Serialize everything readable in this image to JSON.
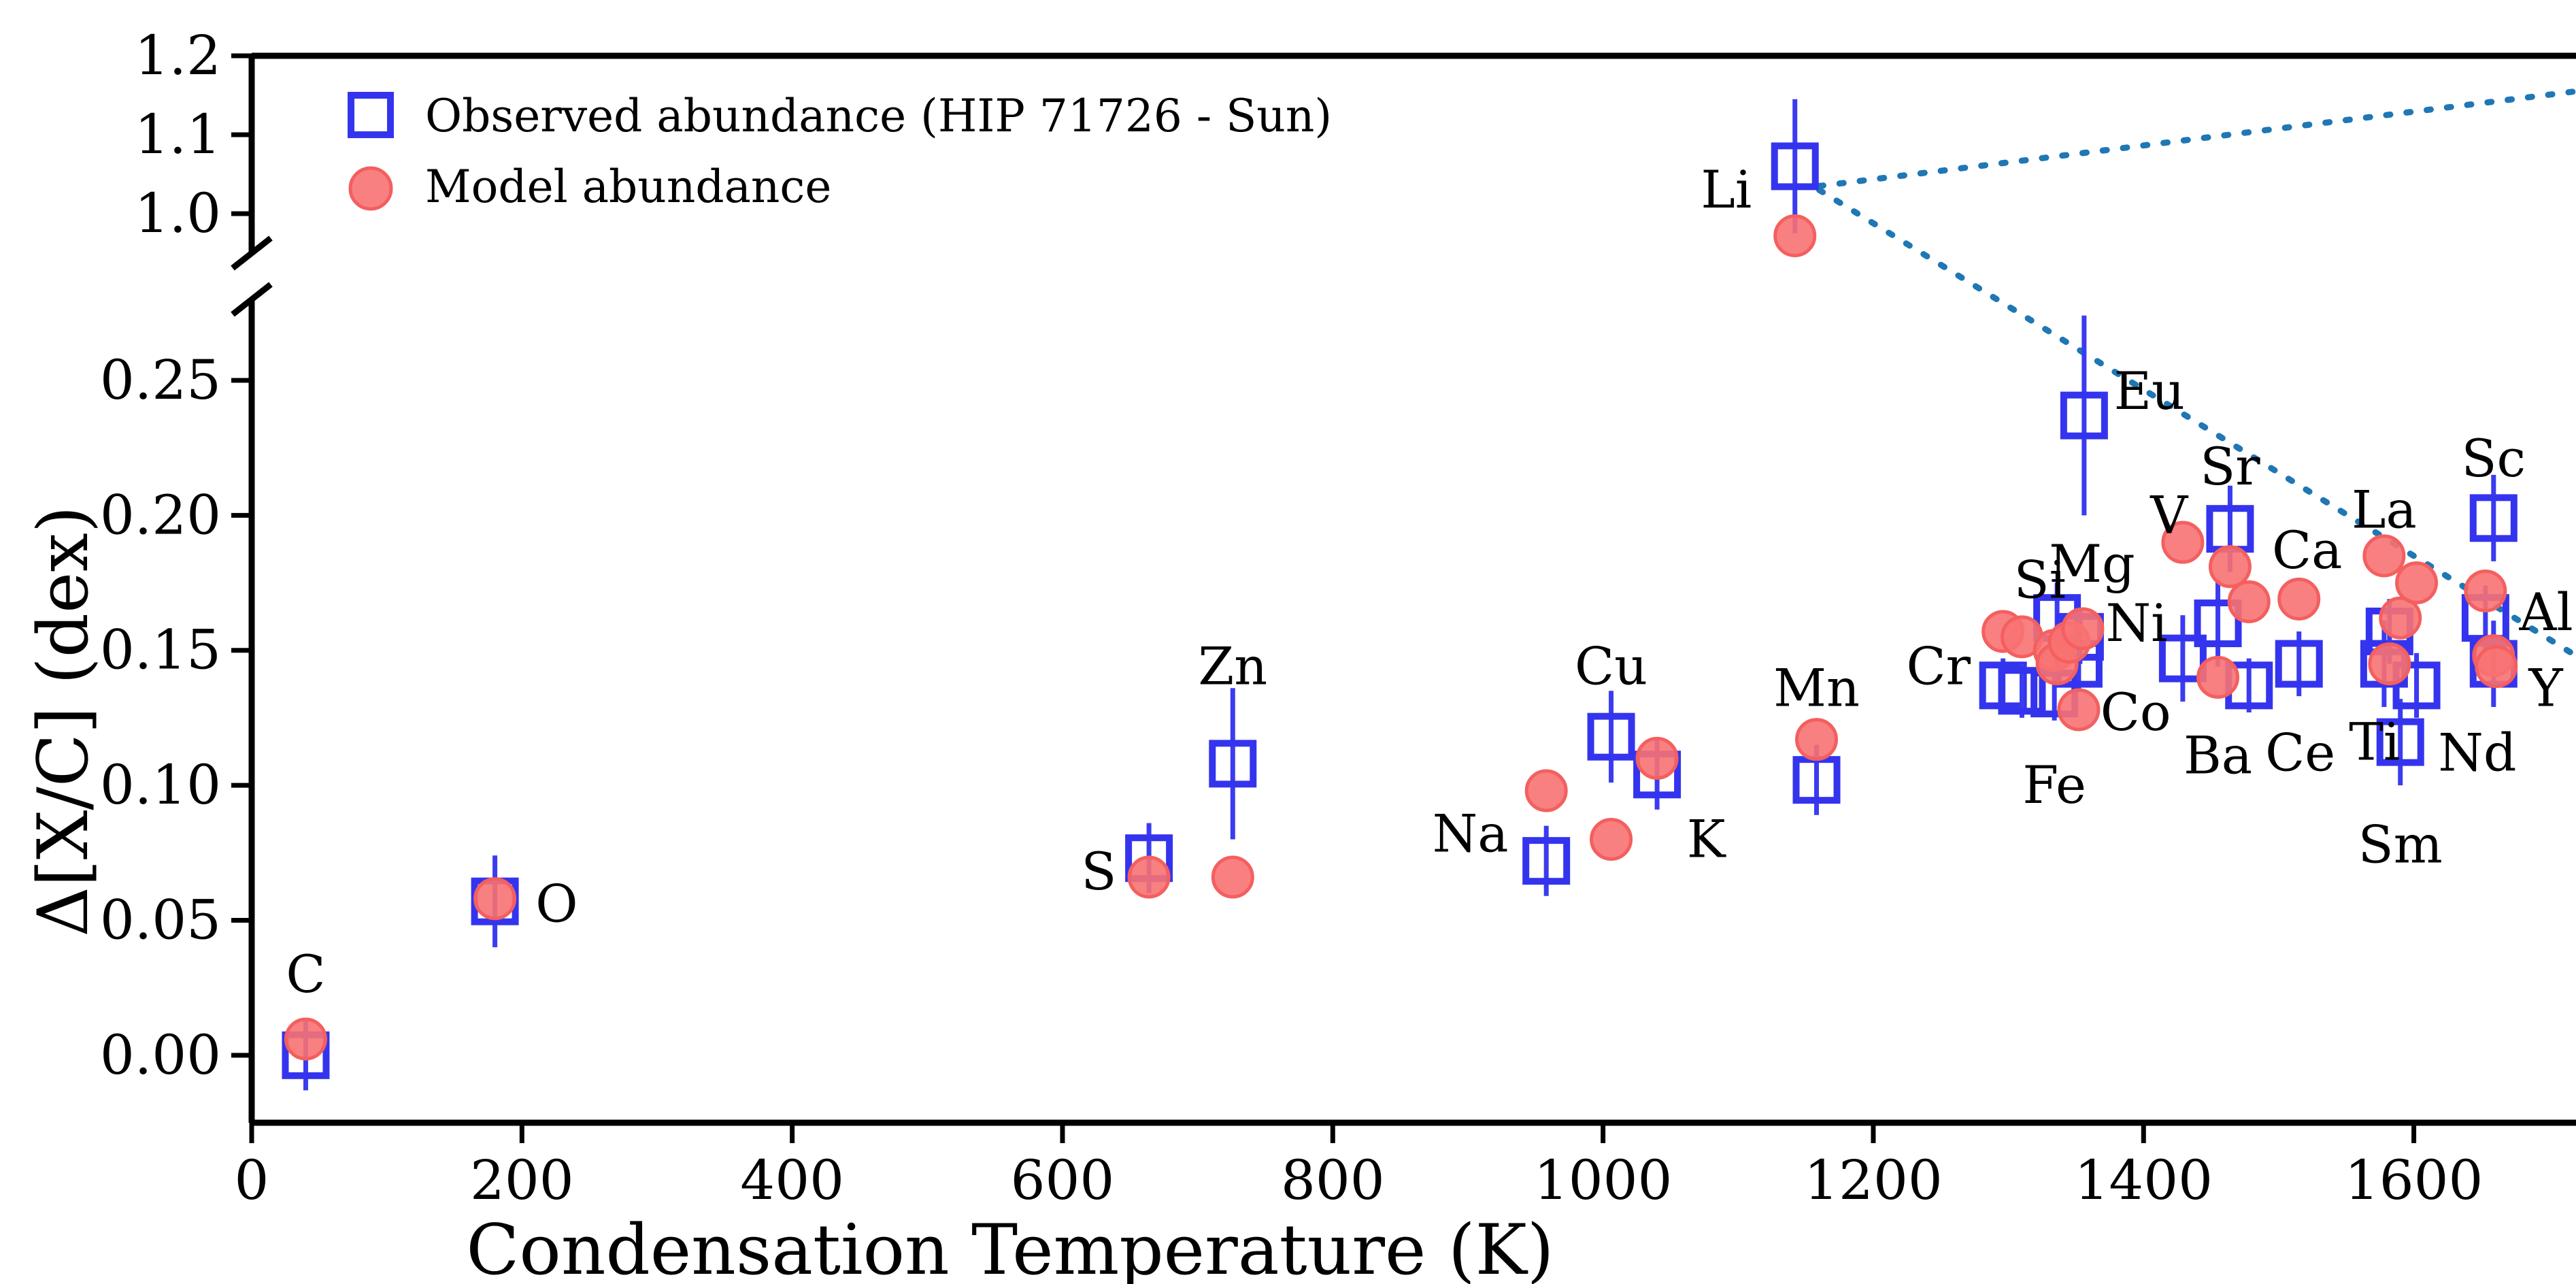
{
  "chart_data": {
    "type": "scatter",
    "xlabel": "Condensation Temperature (K)",
    "ylabel": "Δ[X/C] (dex)",
    "xlim": [
      0,
      1720
    ],
    "ylim_lower": [
      -0.025,
      0.28
    ],
    "ylim_upper": [
      0.95,
      1.2
    ],
    "x_ticks": [
      "0",
      "200",
      "400",
      "600",
      "800",
      "1000",
      "1200",
      "1400",
      "1600"
    ],
    "y_ticks_lower": [
      "0.00",
      "0.05",
      "0.10",
      "0.15",
      "0.20",
      "0.25"
    ],
    "y_ticks_upper": [
      "1.0",
      "1.1",
      "1.2"
    ],
    "broken_axis": true,
    "legend_position": "top-left",
    "legend": {
      "observed": "Observed abundance (HIP 71726 - Sun)",
      "model": "Model abundance"
    },
    "colors": {
      "observed": "#3434ee",
      "model": "#f87272",
      "trend": "#1f77b4"
    },
    "observed": [
      {
        "element": "C",
        "x": 40,
        "y": 0.0,
        "err": 0.013
      },
      {
        "element": "O",
        "x": 180,
        "y": 0.057,
        "err": 0.017
      },
      {
        "element": "S",
        "x": 664,
        "y": 0.073,
        "err": 0.013
      },
      {
        "element": "Zn",
        "x": 726,
        "y": 0.108,
        "err": 0.028
      },
      {
        "element": "Na",
        "x": 958,
        "y": 0.072,
        "err": 0.013
      },
      {
        "element": "Cu",
        "x": 1006,
        "y": 0.118,
        "err": 0.017
      },
      {
        "element": "K",
        "x": 1040,
        "y": 0.104,
        "err": 0.013
      },
      {
        "element": "Mn",
        "x": 1158,
        "y": 0.102,
        "err": 0.013
      },
      {
        "element": "Li",
        "x": 1142,
        "y": 1.06,
        "err": 0.085
      },
      {
        "element": "Cr",
        "x": 1296,
        "y": 0.137,
        "err": 0.01
      },
      {
        "element": "Si",
        "x": 1310,
        "y": 0.135,
        "err": 0.01
      },
      {
        "element": "Fe",
        "x": 1334,
        "y": 0.134,
        "err": 0.01
      },
      {
        "element": "Mg",
        "x": 1336,
        "y": 0.162,
        "err": 0.013
      },
      {
        "element": "Co",
        "x": 1352,
        "y": 0.145,
        "err": 0.01
      },
      {
        "element": "Ni",
        "x": 1353,
        "y": 0.155,
        "err": 0.01
      },
      {
        "element": "Eu",
        "x": 1356,
        "y": 0.237,
        "err": 0.037
      },
      {
        "element": "V",
        "x": 1429,
        "y": 0.147,
        "err": 0.016
      },
      {
        "element": "Ba",
        "x": 1455,
        "y": 0.16,
        "err": 0.016
      },
      {
        "element": "Sr",
        "x": 1464,
        "y": 0.195,
        "err": 0.016
      },
      {
        "element": "Ca",
        "x": 1478,
        "y": 0.137,
        "err": 0.01
      },
      {
        "element": "Ce",
        "x": 1515,
        "y": 0.145,
        "err": 0.012
      },
      {
        "element": "La",
        "x": 1578,
        "y": 0.145,
        "err": 0.016
      },
      {
        "element": "Ti",
        "x": 1582,
        "y": 0.157,
        "err": 0.012
      },
      {
        "element": "Sm",
        "x": 1590,
        "y": 0.116,
        "err": 0.016
      },
      {
        "element": "Nd",
        "x": 1602,
        "y": 0.137,
        "err": 0.012
      },
      {
        "element": "Al",
        "x": 1653,
        "y": 0.162,
        "err": 0.012
      },
      {
        "element": "Sc",
        "x": 1659,
        "y": 0.199,
        "err": 0.016
      },
      {
        "element": "Y",
        "x": 1659,
        "y": 0.145,
        "err": 0.016
      }
    ],
    "model": [
      {
        "x": 40,
        "y": 0.006
      },
      {
        "x": 180,
        "y": 0.058
      },
      {
        "x": 664,
        "y": 0.066
      },
      {
        "x": 726,
        "y": 0.066
      },
      {
        "x": 958,
        "y": 0.098
      },
      {
        "x": 1006,
        "y": 0.08
      },
      {
        "x": 1040,
        "y": 0.11
      },
      {
        "x": 1158,
        "y": 0.117
      },
      {
        "x": 1142,
        "y": 0.972
      },
      {
        "x": 1296,
        "y": 0.157
      },
      {
        "x": 1310,
        "y": 0.155
      },
      {
        "x": 1334,
        "y": 0.15
      },
      {
        "x": 1336,
        "y": 0.145
      },
      {
        "x": 1345,
        "y": 0.153
      },
      {
        "x": 1352,
        "y": 0.128
      },
      {
        "x": 1355,
        "y": 0.158
      },
      {
        "x": 1429,
        "y": 0.19
      },
      {
        "x": 1455,
        "y": 0.14
      },
      {
        "x": 1464,
        "y": 0.181
      },
      {
        "x": 1478,
        "y": 0.168
      },
      {
        "x": 1515,
        "y": 0.169
      },
      {
        "x": 1578,
        "y": 0.185
      },
      {
        "x": 1582,
        "y": 0.145
      },
      {
        "x": 1590,
        "y": 0.162
      },
      {
        "x": 1602,
        "y": 0.175
      },
      {
        "x": 1653,
        "y": 0.172
      },
      {
        "x": 1659,
        "y": 0.148
      },
      {
        "x": 1661,
        "y": 0.144
      }
    ],
    "labels": [
      {
        "text": "C",
        "x": 40,
        "y": 0.03,
        "anchor": "middle"
      },
      {
        "text": "O",
        "x": 210,
        "y": 0.056,
        "anchor": "start"
      },
      {
        "text": "S",
        "x": 640,
        "y": 0.068,
        "anchor": "end"
      },
      {
        "text": "Zn",
        "x": 726,
        "y": 0.144,
        "anchor": "middle"
      },
      {
        "text": "Na",
        "x": 930,
        "y": 0.082,
        "anchor": "end"
      },
      {
        "text": "Cu",
        "x": 1006,
        "y": 0.144,
        "anchor": "middle"
      },
      {
        "text": "K",
        "x": 1062,
        "y": 0.08,
        "anchor": "start"
      },
      {
        "text": "Mn",
        "x": 1158,
        "y": 0.136,
        "anchor": "middle"
      },
      {
        "text": "Li",
        "x": 1110,
        "y": 1.03,
        "anchor": "end"
      },
      {
        "text": "Cr",
        "x": 1272,
        "y": 0.144,
        "anchor": "end"
      },
      {
        "text": "Si",
        "x": 1304,
        "y": 0.176,
        "anchor": "start"
      },
      {
        "text": "Mg",
        "x": 1330,
        "y": 0.182,
        "anchor": "start"
      },
      {
        "text": "Ni",
        "x": 1372,
        "y": 0.16,
        "anchor": "start"
      },
      {
        "text": "Co",
        "x": 1368,
        "y": 0.127,
        "anchor": "start"
      },
      {
        "text": "Fe",
        "x": 1334,
        "y": 0.1,
        "anchor": "middle"
      },
      {
        "text": "Eu",
        "x": 1378,
        "y": 0.246,
        "anchor": "start"
      },
      {
        "text": "V",
        "x": 1405,
        "y": 0.2,
        "anchor": "start"
      },
      {
        "text": "Sr",
        "x": 1464,
        "y": 0.218,
        "anchor": "middle"
      },
      {
        "text": "Ca",
        "x": 1495,
        "y": 0.187,
        "anchor": "start"
      },
      {
        "text": "Ba",
        "x": 1455,
        "y": 0.111,
        "anchor": "middle"
      },
      {
        "text": "Ce",
        "x": 1490,
        "y": 0.112,
        "anchor": "start"
      },
      {
        "text": "Ti",
        "x": 1552,
        "y": 0.116,
        "anchor": "start"
      },
      {
        "text": "La",
        "x": 1578,
        "y": 0.202,
        "anchor": "middle"
      },
      {
        "text": "Sm",
        "x": 1590,
        "y": 0.078,
        "anchor": "middle"
      },
      {
        "text": "Nd",
        "x": 1618,
        "y": 0.112,
        "anchor": "start"
      },
      {
        "text": "Sc",
        "x": 1659,
        "y": 0.221,
        "anchor": "middle"
      },
      {
        "text": "Al",
        "x": 1678,
        "y": 0.164,
        "anchor": "start"
      },
      {
        "text": "Y",
        "x": 1685,
        "y": 0.136,
        "anchor": "start"
      }
    ],
    "trend_lines": [
      {
        "from": {
          "x": 1160,
          "y": 1.035
        },
        "to": {
          "x": 1720,
          "y": 1.155
        }
      },
      {
        "from": {
          "x": 1160,
          "y": 1.03
        },
        "to": {
          "x": 1720,
          "y": 0.148
        }
      }
    ]
  }
}
